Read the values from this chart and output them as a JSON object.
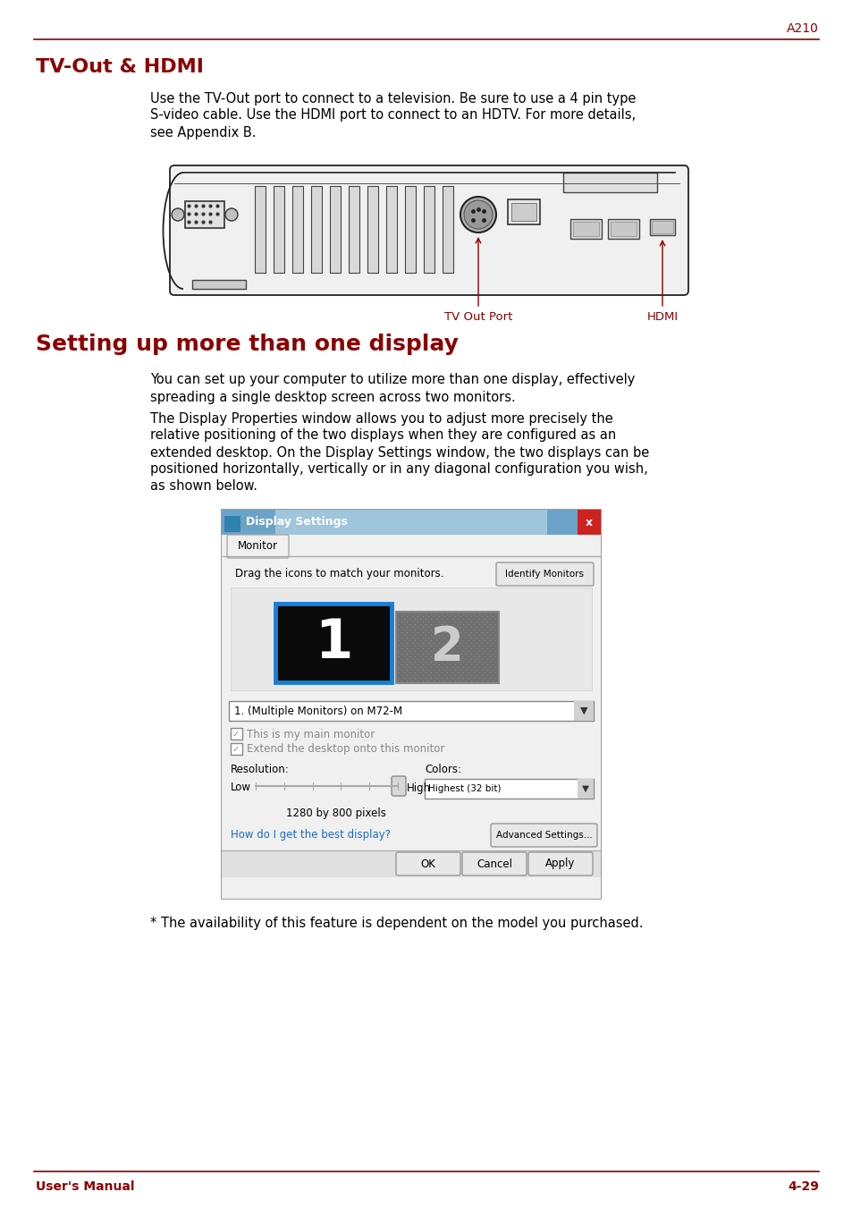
{
  "page_label": "A210",
  "header_line_color": "#8B0000",
  "title1": "TV-Out & HDMI",
  "title1_color": "#8B0000",
  "body1_lines": [
    "Use the TV-Out port to connect to a television. Be sure to use a 4 pin type",
    "S-video cable. Use the HDMI port to connect to an HDTV. For more details,",
    "see Appendix B."
  ],
  "title2": "Setting up more than one display",
  "title2_color": "#8B0000",
  "body2_lines": [
    "You can set up your computer to utilize more than one display, effectively",
    "spreading a single desktop screen across two monitors."
  ],
  "body3_lines": [
    "The Display Properties window allows you to adjust more precisely the",
    "relative positioning of the two displays when they are configured as an",
    "extended desktop. On the Display Settings window, the two displays can be",
    "positioned horizontally, vertically or in any diagonal configuration you wish,",
    "as shown below."
  ],
  "footnote": "* The availability of this feature is dependent on the model you purchased.",
  "footer_left": "User's Manual",
  "footer_right": "4-29",
  "footer_color": "#8B0000",
  "text_color": "#000000",
  "bg_color": "#ffffff",
  "body_fontsize": 10.5,
  "title1_fontsize": 16,
  "title2_fontsize": 18,
  "label_fontsize": 9.5
}
